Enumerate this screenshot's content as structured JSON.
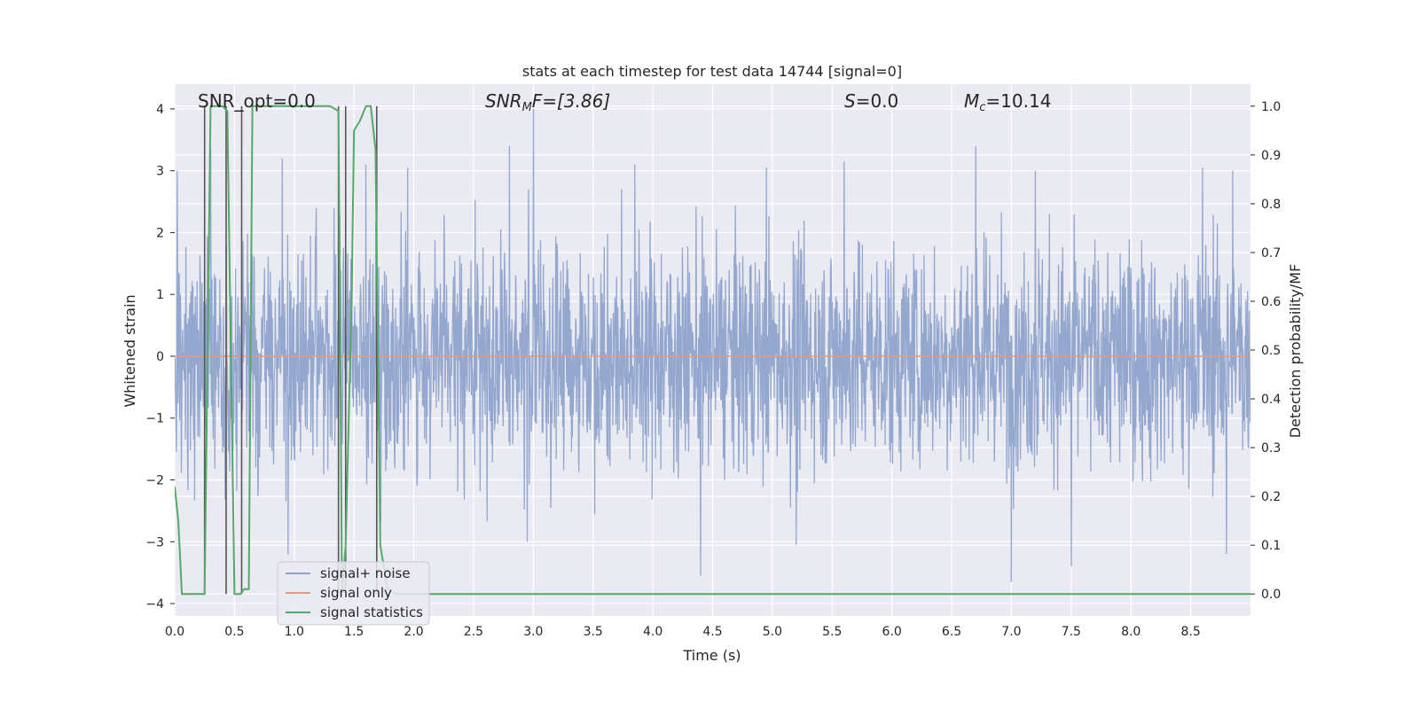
{
  "chart_data": {
    "type": "line",
    "title": "stats at each timestep for test data 14744 [signal=0]",
    "xlabel": "Time (s)",
    "ylabel": "Whitened strain",
    "ylabel_right": "Detection probability/MF",
    "xlim": [
      0.0,
      9.0
    ],
    "ylim": [
      -4.2,
      4.4
    ],
    "ylim_right": [
      -0.045,
      1.045
    ],
    "xticks": [
      "0.0",
      "0.5",
      "1.0",
      "1.5",
      "2.0",
      "2.5",
      "3.0",
      "3.5",
      "4.0",
      "4.5",
      "5.0",
      "5.5",
      "6.0",
      "6.5",
      "7.0",
      "7.5",
      "8.0",
      "8.5"
    ],
    "yticks": [
      "4",
      "3",
      "2",
      "1",
      "0",
      "−1",
      "−2",
      "−3",
      "−4"
    ],
    "yticks_right": [
      "1.0",
      "0.9",
      "0.8",
      "0.7",
      "0.6",
      "0.5",
      "0.4",
      "0.3",
      "0.2",
      "0.1",
      "0.0"
    ],
    "grid": true,
    "legend_position": "lower-left",
    "annotations": {
      "snr_opt": "SNR_opt=0.0",
      "snr_mf_label": "SNR",
      "snr_mf_sub": "M",
      "snr_mf_rest": "F=[3.86]",
      "s_label": "S",
      "s_rest": "=0.0",
      "mc_label": "M",
      "mc_sub": "c",
      "mc_rest": "=10.14"
    },
    "series": [
      {
        "name": "signal+ noise",
        "color": "#8ea3cc",
        "description_of_values": "whitened strain noise, amplitude mostly within ±2, peaks near 4 and -3.7",
        "peaks_max": [
          [
            0.02,
            3.0
          ],
          [
            0.3,
            3.35
          ],
          [
            0.9,
            3.2
          ],
          [
            1.6,
            3.1
          ],
          [
            1.95,
            3.05
          ],
          [
            2.8,
            3.4
          ],
          [
            3.0,
            4.0
          ],
          [
            3.85,
            3.1
          ],
          [
            4.95,
            3.05
          ],
          [
            5.6,
            3.15
          ],
          [
            6.7,
            3.4
          ],
          [
            7.2,
            3.0
          ],
          [
            8.6,
            3.05
          ],
          [
            8.85,
            3.0
          ]
        ],
        "peaks_min": [
          [
            0.95,
            -3.2
          ],
          [
            2.95,
            -3.0
          ],
          [
            4.4,
            -3.55
          ],
          [
            5.2,
            -3.05
          ],
          [
            7.0,
            -3.65
          ],
          [
            7.5,
            -3.4
          ],
          [
            8.8,
            -3.2
          ]
        ]
      },
      {
        "name": "signal only",
        "color": "#e39a7c",
        "x": [
          0.0,
          9.0
        ],
        "y": [
          0.0,
          0.0
        ]
      },
      {
        "name": "signal statistics",
        "color": "#55a868",
        "axis": "right",
        "x": [
          0.0,
          0.03,
          0.06,
          0.12,
          0.2,
          0.25,
          0.3,
          0.4,
          0.44,
          0.5,
          0.55,
          0.58,
          0.62,
          0.65,
          0.8,
          1.0,
          1.2,
          1.3,
          1.37,
          1.4,
          1.43,
          1.48,
          1.5,
          1.55,
          1.6,
          1.64,
          1.68,
          1.72,
          1.78,
          1.85,
          2.0,
          3.0,
          3.9,
          4.0,
          5.0,
          6.0,
          7.0,
          8.0,
          9.0
        ],
        "y": [
          0.22,
          0.15,
          0.0,
          0.0,
          0.0,
          0.0,
          1.0,
          1.0,
          0.99,
          0.0,
          0.0,
          0.01,
          0.01,
          1.0,
          1.0,
          1.0,
          1.0,
          1.0,
          0.99,
          0.0,
          0.1,
          0.6,
          0.95,
          0.97,
          1.0,
          1.0,
          0.91,
          0.1,
          0.01,
          0.0,
          0.0,
          0.0,
          0.0,
          0.0,
          0.0,
          0.0,
          0.0,
          0.0,
          0.0
        ]
      }
    ],
    "vlines": [
      {
        "x": 0.25,
        "color": "#555555"
      },
      {
        "x": 0.43,
        "color": "#555555"
      },
      {
        "x": 0.56,
        "color": "#555555"
      },
      {
        "x": 1.37,
        "color": "#555555"
      },
      {
        "x": 1.43,
        "color": "#555555"
      },
      {
        "x": 1.69,
        "color": "#555555"
      }
    ],
    "colors": {
      "background": "#eaeaf2",
      "grid": "#ffffff",
      "vline": "#555555"
    }
  }
}
